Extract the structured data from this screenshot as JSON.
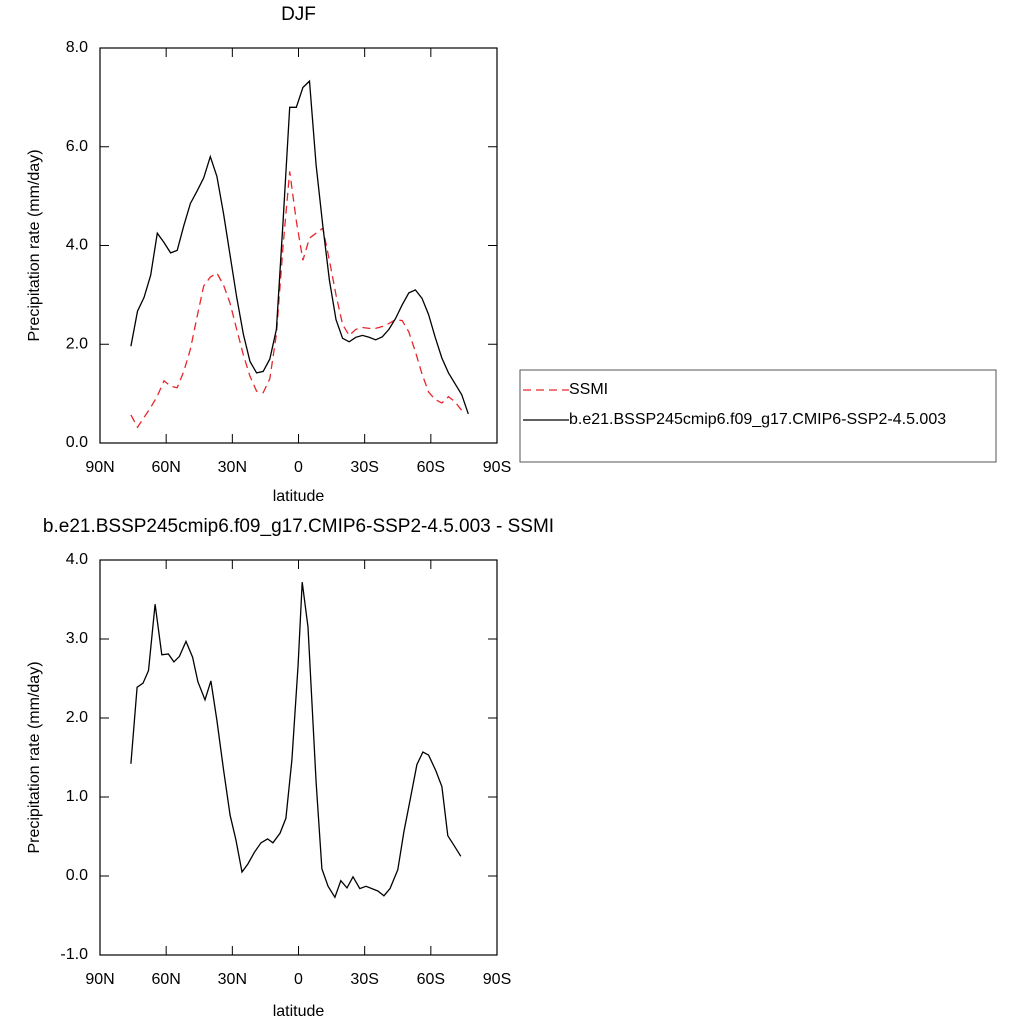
{
  "chart_data": [
    {
      "type": "line",
      "title": "DJF",
      "xlabel": "latitude",
      "ylabel": "Precipitation rate (mm/day)",
      "x": [
        76,
        73,
        70,
        67,
        64,
        61,
        58,
        55,
        52,
        49,
        46,
        43,
        40,
        37,
        34,
        31,
        28,
        25,
        22,
        19,
        16,
        13,
        10,
        7,
        4,
        1,
        -2,
        -5,
        -8,
        -11,
        -14,
        -17,
        -20,
        -23,
        -26,
        -29,
        -32,
        -35,
        -38,
        -41,
        -44,
        -47,
        -50,
        -53,
        -56,
        -59,
        -62,
        -65,
        -68,
        -71,
        -74,
        -77
      ],
      "series": [
        {
          "name": "SSMI",
          "color": "#e8262b",
          "line_style": "dashed",
          "values": [
            0.57,
            0.32,
            0.52,
            0.72,
            0.95,
            1.26,
            1.15,
            1.12,
            1.45,
            1.9,
            2.55,
            3.18,
            3.36,
            3.44,
            3.2,
            2.83,
            2.3,
            1.78,
            1.35,
            1.05,
            1.02,
            1.3,
            2.2,
            4.0,
            5.5,
            4.5,
            3.7,
            4.15,
            4.25,
            4.35,
            3.7,
            3.0,
            2.4,
            2.18,
            2.3,
            2.34,
            2.32,
            2.32,
            2.36,
            2.42,
            2.5,
            2.48,
            2.25,
            1.85,
            1.4,
            1.03,
            0.88,
            0.81,
            0.94,
            0.83,
            0.66,
            null
          ]
        },
        {
          "name": "b.e21.BSSP245cmip6.f09_g17.CMIP6-SSP2-4.5.003",
          "color": "#000000",
          "line_style": "solid",
          "values": [
            1.96,
            2.67,
            2.95,
            3.4,
            4.25,
            4.06,
            3.85,
            3.9,
            4.4,
            4.85,
            5.1,
            5.37,
            5.8,
            5.4,
            4.65,
            3.8,
            2.95,
            2.2,
            1.65,
            1.42,
            1.45,
            1.7,
            2.3,
            4.5,
            6.8,
            6.8,
            7.2,
            7.33,
            5.63,
            4.4,
            3.3,
            2.5,
            2.12,
            2.05,
            2.14,
            2.18,
            2.14,
            2.09,
            2.15,
            2.3,
            2.52,
            2.8,
            3.04,
            3.1,
            2.93,
            2.6,
            2.14,
            1.72,
            1.42,
            1.2,
            0.98,
            0.59
          ]
        }
      ],
      "xlim": [
        90,
        -90
      ],
      "xticks": [
        {
          "value": 90,
          "label": "90N"
        },
        {
          "value": 60,
          "label": "60N"
        },
        {
          "value": 30,
          "label": "30N"
        },
        0,
        {
          "value": -30,
          "label": "30S"
        },
        {
          "value": -60,
          "label": "60S"
        },
        {
          "value": -90,
          "label": "90S"
        }
      ],
      "ylim": [
        0,
        8
      ],
      "yticks": [
        {
          "value": 0,
          "label": "0.0"
        },
        {
          "value": 2,
          "label": "2.0"
        },
        {
          "value": 4,
          "label": "4.0"
        },
        {
          "value": 6,
          "label": "6.0"
        },
        {
          "value": 8,
          "label": "8.0"
        }
      ],
      "legend": "right"
    },
    {
      "type": "line",
      "title": "b.e21.BSSP245cmip6.f09_g17.CMIP6-SSP2-4.5.003 - SSMI",
      "xlabel": "latitude",
      "ylabel": "Precipitation rate (mm/day)",
      "x": [
        76,
        73.2,
        70.5,
        68,
        65,
        62,
        59,
        56.5,
        54,
        51,
        48,
        45.6,
        42.4,
        39.7,
        37,
        34,
        31,
        28.4,
        25.6,
        23,
        20,
        17,
        14,
        11.6,
        8.4,
        5.7,
        3,
        0.2,
        -1.7,
        -4.3,
        -8,
        -10.6,
        -13.4,
        -16.5,
        -19.2,
        -22,
        -24.7,
        -27.8,
        -30.6,
        -36,
        -38.7,
        -41.5,
        -45,
        -47.8,
        -50.5,
        -53.7,
        -56.4,
        -59,
        -62.3,
        -65,
        -67.7,
        -70.9,
        -73.6
      ],
      "values": [
        1.42,
        2.39,
        2.44,
        2.6,
        3.44,
        2.8,
        2.81,
        2.71,
        2.78,
        2.97,
        2.77,
        2.46,
        2.23,
        2.47,
        1.97,
        1.35,
        0.77,
        0.46,
        0.05,
        0.15,
        0.3,
        0.42,
        0.47,
        0.42,
        0.54,
        0.73,
        1.47,
        2.67,
        3.72,
        3.15,
        1.19,
        0.09,
        -0.13,
        -0.27,
        -0.06,
        -0.15,
        -0.01,
        -0.16,
        -0.13,
        -0.19,
        -0.25,
        -0.16,
        0.08,
        0.56,
        0.95,
        1.41,
        1.57,
        1.53,
        1.33,
        1.13,
        0.51,
        0.37,
        0.25
      ],
      "color": "#000000",
      "xlim": [
        90,
        -90
      ],
      "xticks": [
        {
          "value": 90,
          "label": "90N"
        },
        {
          "value": 60,
          "label": "60N"
        },
        {
          "value": 30,
          "label": "30N"
        },
        0,
        {
          "value": -30,
          "label": "30S"
        },
        {
          "value": -60,
          "label": "60S"
        },
        {
          "value": -90,
          "label": "90S"
        }
      ],
      "ylim": [
        -1,
        4
      ],
      "yticks": [
        {
          "value": -1,
          "label": "-1.0"
        },
        {
          "value": 0,
          "label": "0.0"
        },
        {
          "value": 1,
          "label": "1.0"
        },
        {
          "value": 2,
          "label": "2.0"
        },
        {
          "value": 3,
          "label": "3.0"
        },
        {
          "value": 4,
          "label": "4.0"
        }
      ]
    }
  ]
}
